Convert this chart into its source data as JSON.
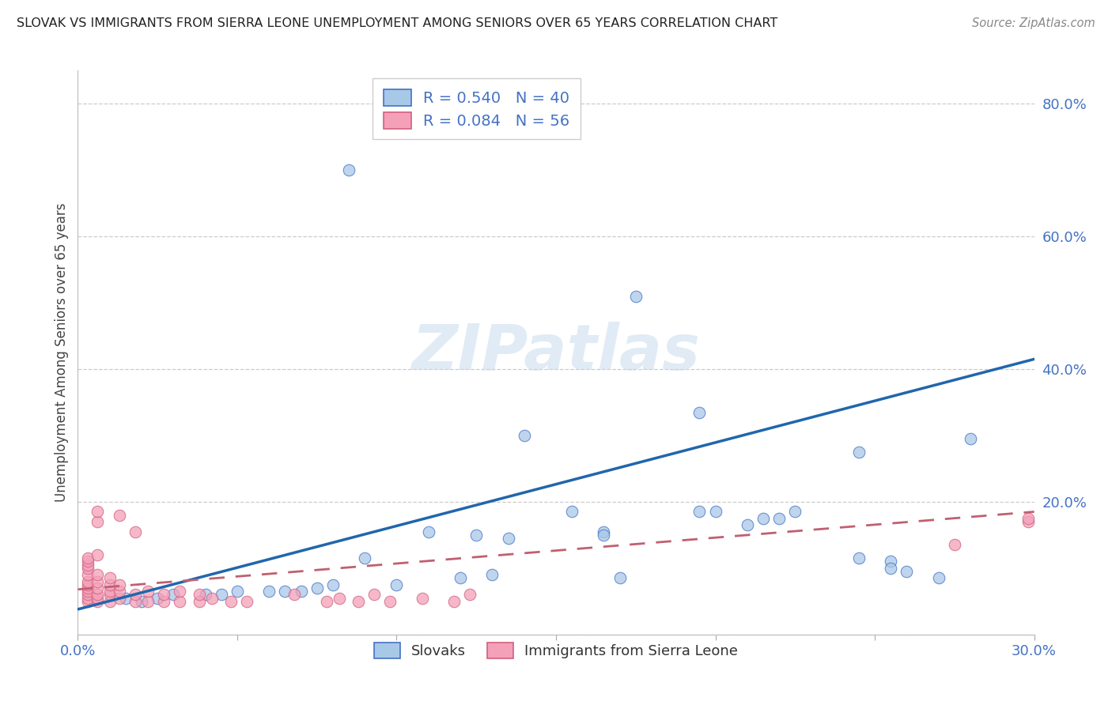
{
  "title": "SLOVAK VS IMMIGRANTS FROM SIERRA LEONE UNEMPLOYMENT AMONG SENIORS OVER 65 YEARS CORRELATION CHART",
  "source": "Source: ZipAtlas.com",
  "ylabel_label": "Unemployment Among Seniors over 65 years",
  "xlim": [
    0.0,
    0.3
  ],
  "ylim": [
    0.0,
    0.85
  ],
  "x_ticks": [
    0.0,
    0.05,
    0.1,
    0.15,
    0.2,
    0.25,
    0.3
  ],
  "x_tick_labels": [
    "0.0%",
    "",
    "",
    "",
    "",
    "",
    "30.0%"
  ],
  "y_ticks": [
    0.0,
    0.2,
    0.4,
    0.6,
    0.8
  ],
  "y_tick_labels": [
    "",
    "20.0%",
    "40.0%",
    "60.0%",
    "80.0%"
  ],
  "blue_R": 0.54,
  "blue_N": 40,
  "pink_R": 0.084,
  "pink_N": 56,
  "blue_color": "#a8c8e8",
  "pink_color": "#f4a0b8",
  "blue_edge_color": "#4472c4",
  "pink_edge_color": "#d06080",
  "blue_line_color": "#2166ac",
  "pink_line_color": "#c06070",
  "title_color": "#222222",
  "axis_color": "#4472c4",
  "watermark": "ZIPatlas",
  "blue_scatter_x": [
    0.085,
    0.175,
    0.14,
    0.155,
    0.195,
    0.21,
    0.225,
    0.2,
    0.195,
    0.215,
    0.22,
    0.245,
    0.245,
    0.255,
    0.255,
    0.26,
    0.27,
    0.28,
    0.165,
    0.165,
    0.17,
    0.09,
    0.11,
    0.125,
    0.135,
    0.015,
    0.02,
    0.025,
    0.03,
    0.04,
    0.045,
    0.05,
    0.06,
    0.065,
    0.07,
    0.075,
    0.08,
    0.1,
    0.12,
    0.13
  ],
  "blue_scatter_y": [
    0.7,
    0.51,
    0.3,
    0.185,
    0.185,
    0.165,
    0.185,
    0.185,
    0.335,
    0.175,
    0.175,
    0.275,
    0.115,
    0.11,
    0.1,
    0.095,
    0.085,
    0.295,
    0.155,
    0.15,
    0.085,
    0.115,
    0.155,
    0.15,
    0.145,
    0.055,
    0.05,
    0.055,
    0.06,
    0.06,
    0.06,
    0.065,
    0.065,
    0.065,
    0.065,
    0.07,
    0.075,
    0.075,
    0.085,
    0.09
  ],
  "pink_scatter_x": [
    0.003,
    0.003,
    0.003,
    0.003,
    0.003,
    0.003,
    0.003,
    0.003,
    0.003,
    0.003,
    0.003,
    0.003,
    0.006,
    0.006,
    0.006,
    0.006,
    0.006,
    0.006,
    0.006,
    0.006,
    0.006,
    0.01,
    0.01,
    0.01,
    0.01,
    0.01,
    0.013,
    0.013,
    0.013,
    0.013,
    0.018,
    0.018,
    0.018,
    0.022,
    0.022,
    0.027,
    0.027,
    0.032,
    0.032,
    0.038,
    0.038,
    0.042,
    0.048,
    0.053,
    0.068,
    0.078,
    0.082,
    0.088,
    0.093,
    0.098,
    0.108,
    0.118,
    0.123,
    0.275,
    0.298,
    0.298
  ],
  "pink_scatter_y": [
    0.05,
    0.055,
    0.06,
    0.065,
    0.07,
    0.075,
    0.08,
    0.09,
    0.1,
    0.105,
    0.11,
    0.115,
    0.05,
    0.055,
    0.06,
    0.07,
    0.08,
    0.09,
    0.12,
    0.17,
    0.185,
    0.05,
    0.06,
    0.065,
    0.075,
    0.085,
    0.055,
    0.065,
    0.075,
    0.18,
    0.05,
    0.06,
    0.155,
    0.05,
    0.065,
    0.05,
    0.06,
    0.05,
    0.065,
    0.05,
    0.06,
    0.055,
    0.05,
    0.05,
    0.06,
    0.05,
    0.055,
    0.05,
    0.06,
    0.05,
    0.055,
    0.05,
    0.06,
    0.135,
    0.17,
    0.175
  ],
  "blue_line_x": [
    0.0,
    0.3
  ],
  "blue_line_y": [
    0.038,
    0.415
  ],
  "pink_line_x": [
    0.0,
    0.3
  ],
  "pink_line_y": [
    0.068,
    0.185
  ],
  "legend_label_blue": "Slovaks",
  "legend_label_pink": "Immigrants from Sierra Leone"
}
